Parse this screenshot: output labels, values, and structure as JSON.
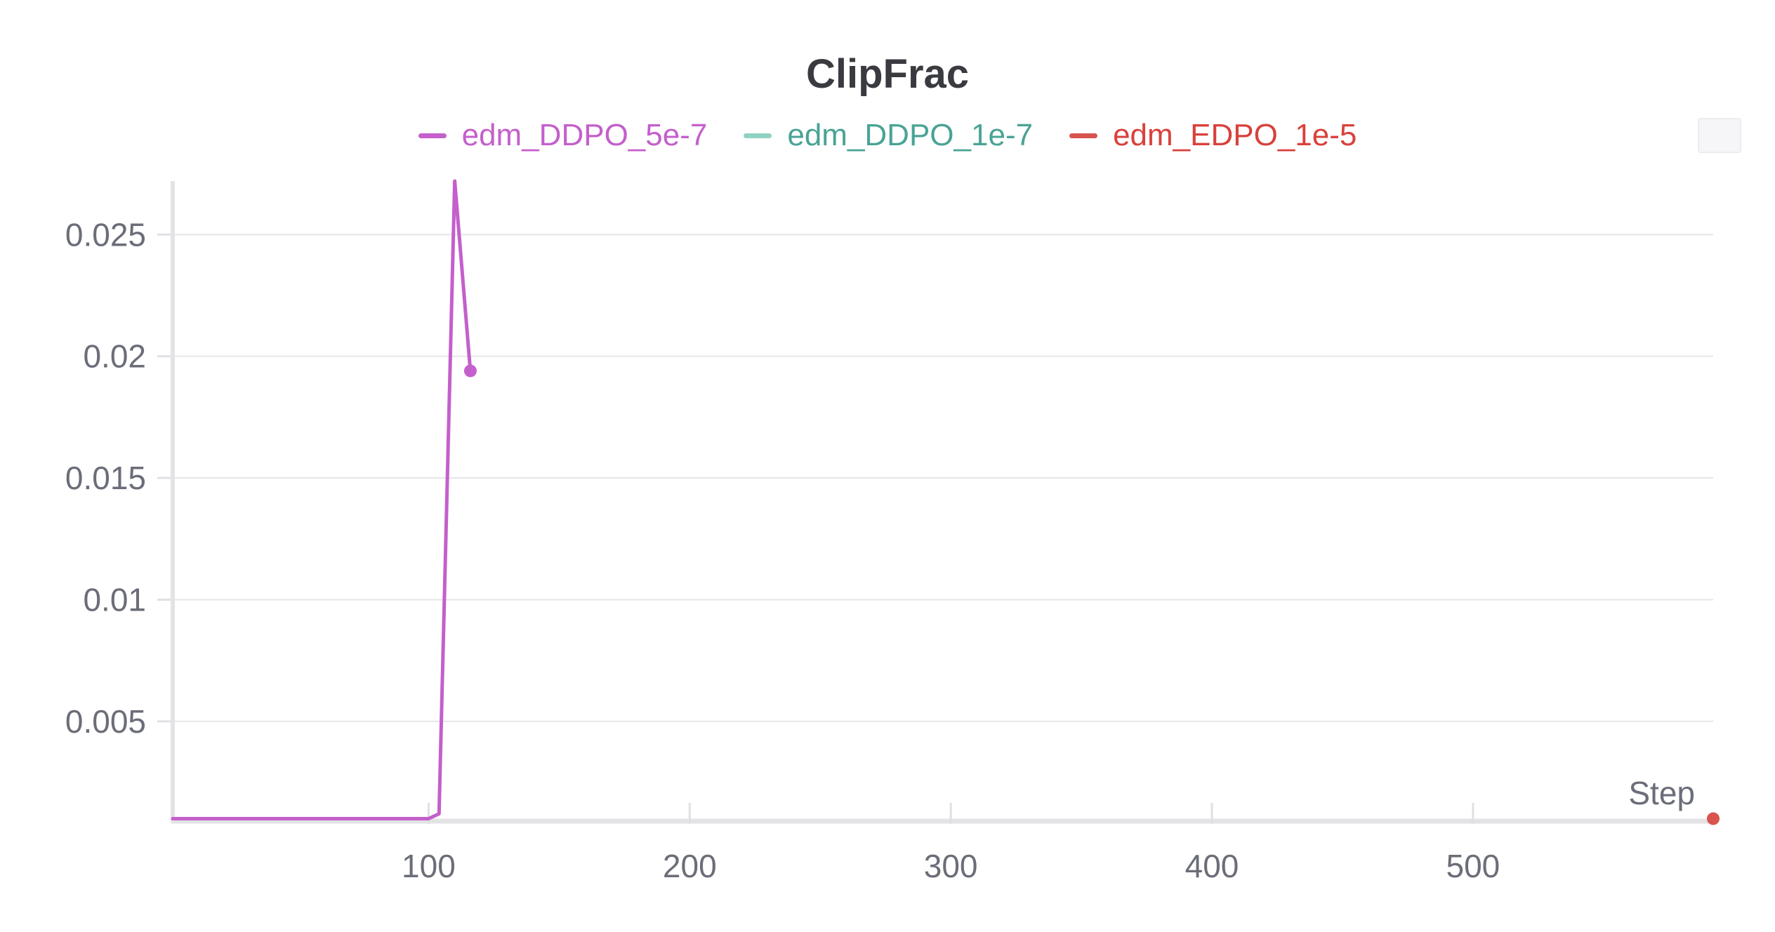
{
  "chart_data": {
    "type": "line",
    "title": "ClipFrac",
    "xlabel": "Step",
    "ylabel": "",
    "xlim": [
      2,
      592
    ],
    "ylim": [
      0.0009,
      0.0272
    ],
    "x_ticks": [
      100,
      200,
      300,
      400,
      500
    ],
    "x_tick_labels": [
      "100",
      "200",
      "300",
      "400",
      "500"
    ],
    "y_ticks": [
      0.005,
      0.01,
      0.015,
      0.02,
      0.025
    ],
    "y_tick_labels": [
      "0.005",
      "0.01",
      "0.015",
      "0.02",
      "0.025"
    ],
    "grid": true,
    "legend_position": "top-center",
    "series": [
      {
        "name": "edm_DDPO_5e-7",
        "color": "#c45fcc",
        "x": [
          2,
          100,
          104,
          110,
          116
        ],
        "y": [
          0.001,
          0.001,
          0.0012,
          0.0272,
          0.0194
        ],
        "end_marker": true
      },
      {
        "name": "edm_DDPO_1e-7",
        "color": "#8fd1c3",
        "label_color": "#4aa395",
        "x": [],
        "y": [],
        "end_marker": false
      },
      {
        "name": "edm_EDPO_1e-5",
        "color": "#d9534f",
        "label_color": "#d9413c",
        "x": [
          592
        ],
        "y": [
          0.001
        ],
        "end_marker": true
      }
    ]
  }
}
